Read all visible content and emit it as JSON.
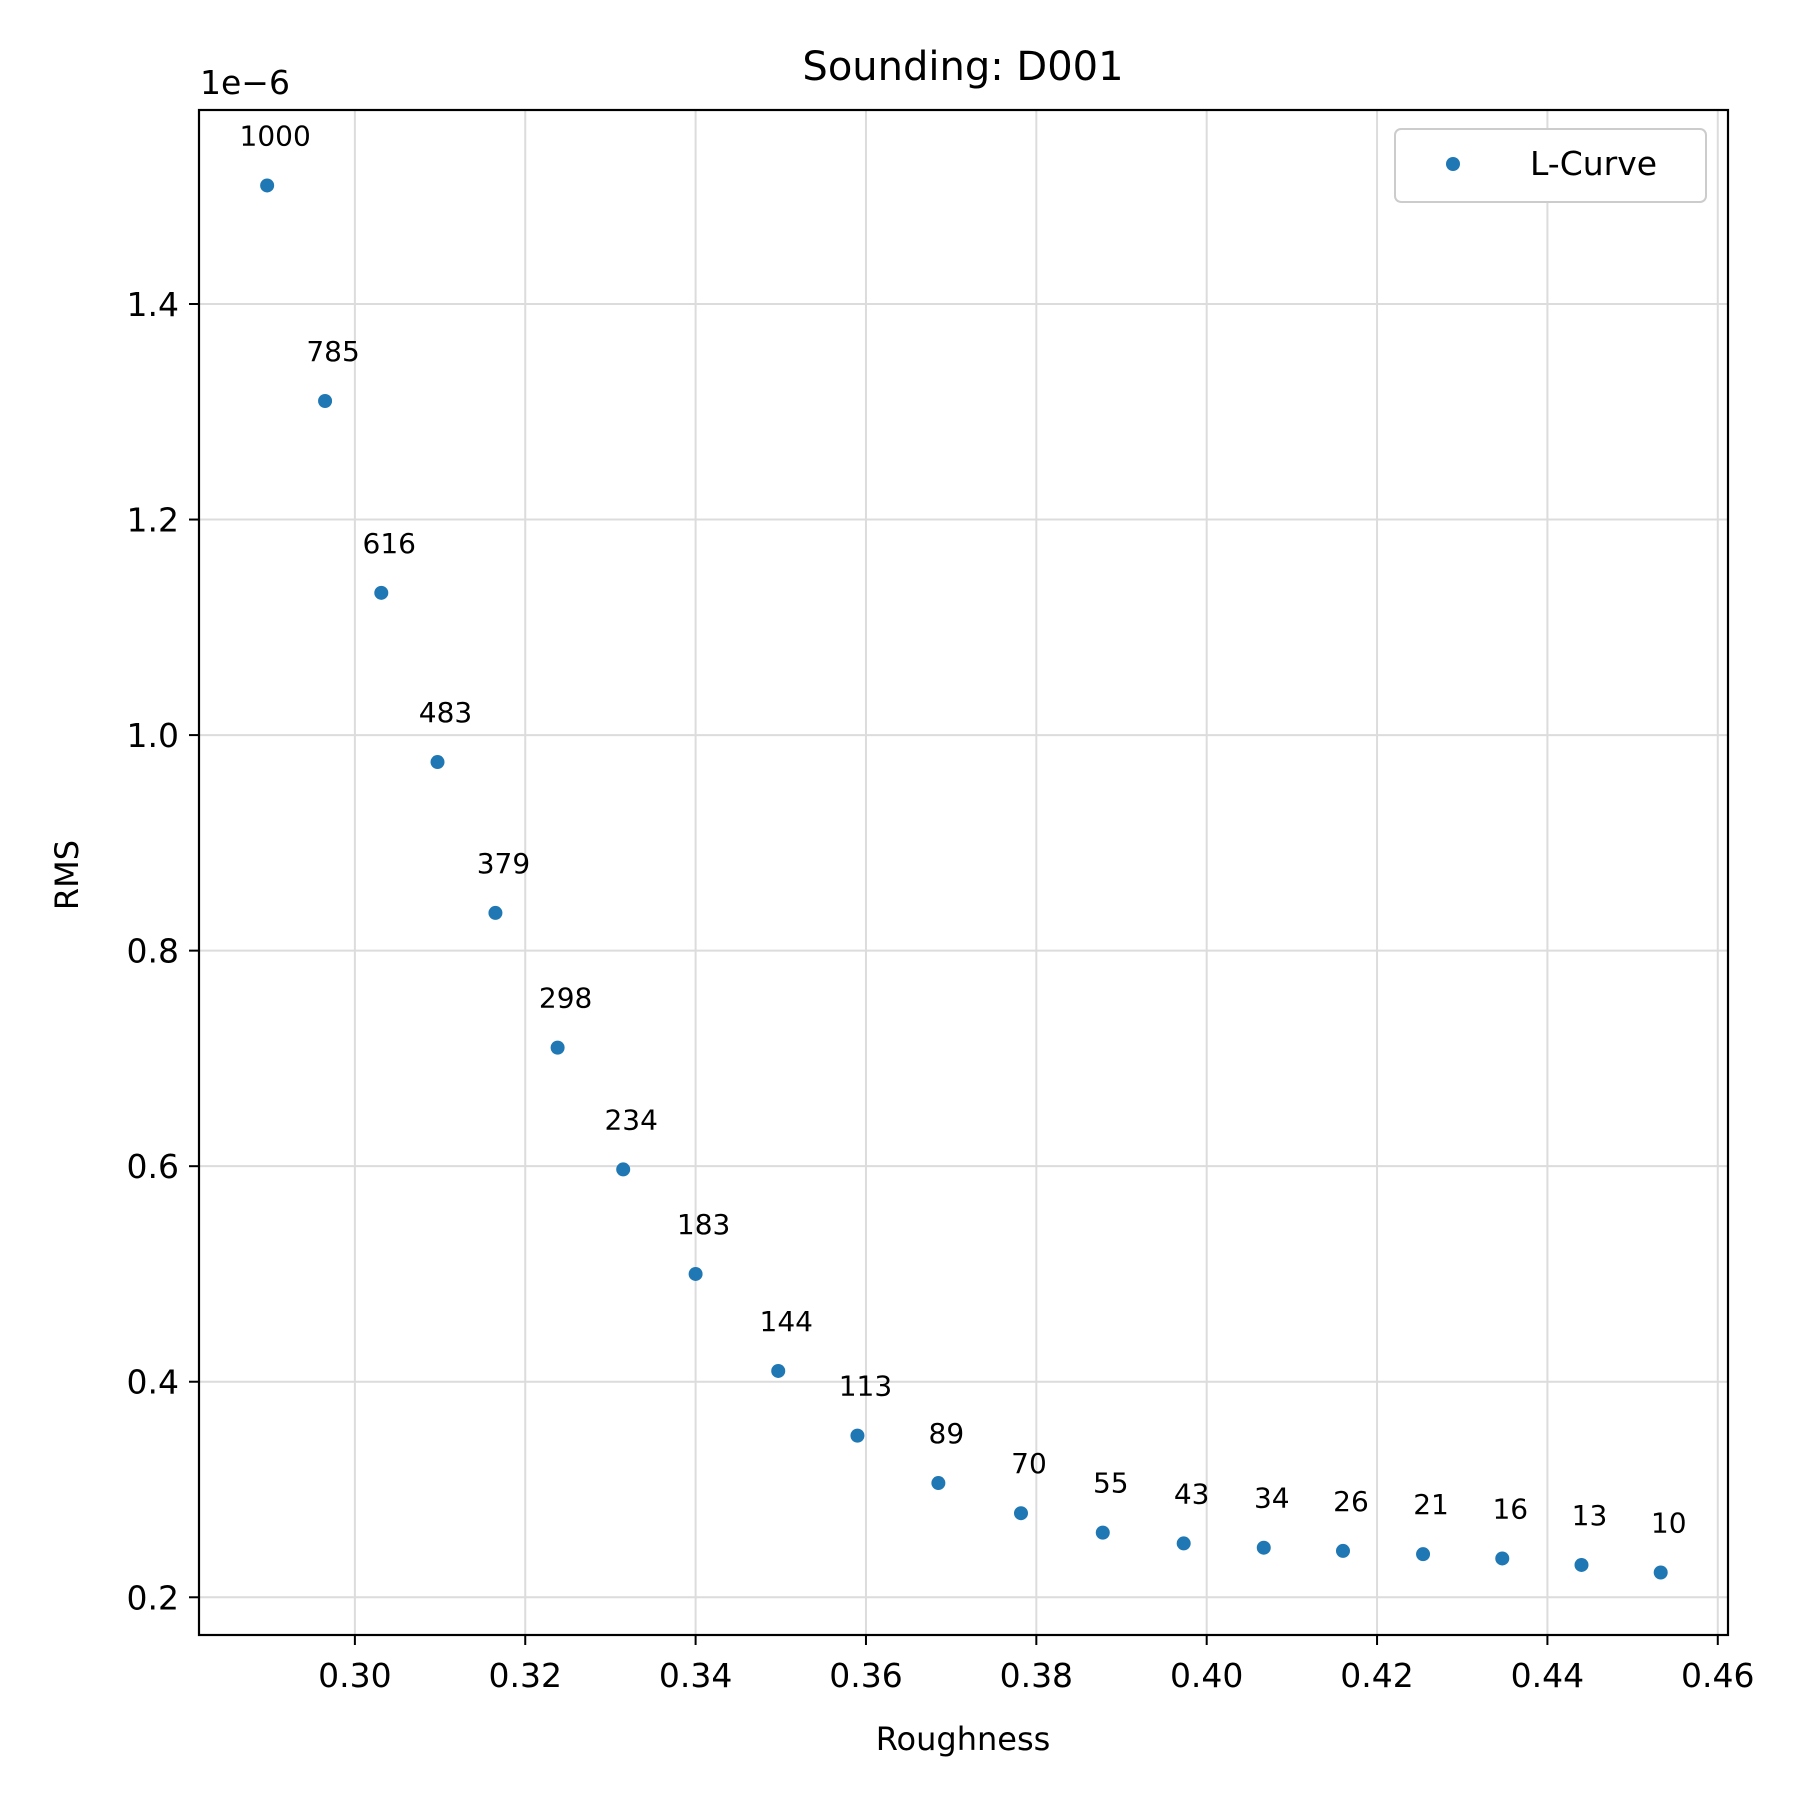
{
  "chart_data": {
    "type": "scatter",
    "title": "Sounding: D001",
    "xlabel": "Roughness",
    "ylabel": "RMS",
    "y_offset_text": "1e−6",
    "xlim": [
      0.2817,
      0.4612
    ],
    "ylim": [
      0.165,
      1.58
    ],
    "x_ticks": [
      0.3,
      0.32,
      0.34,
      0.36,
      0.38,
      0.4,
      0.42,
      0.44,
      0.46
    ],
    "x_tick_labels": [
      "0.30",
      "0.32",
      "0.34",
      "0.36",
      "0.38",
      "0.40",
      "0.42",
      "0.44",
      "0.46"
    ],
    "y_ticks": [
      0.2,
      0.4,
      0.6,
      0.8,
      1.0,
      1.2,
      1.4
    ],
    "y_tick_labels": [
      "0.2",
      "0.4",
      "0.6",
      "0.8",
      "1.0",
      "1.2",
      "1.4"
    ],
    "grid": true,
    "legend": {
      "position": "top-right",
      "entries": [
        "L-Curve"
      ]
    },
    "series": [
      {
        "name": "L-Curve",
        "color": "#1f77b4",
        "points": [
          {
            "x": 0.2897,
            "y": 1.51,
            "label": "1000"
          },
          {
            "x": 0.2965,
            "y": 1.31,
            "label": "785"
          },
          {
            "x": 0.3031,
            "y": 1.132,
            "label": "616"
          },
          {
            "x": 0.3097,
            "y": 0.975,
            "label": "483"
          },
          {
            "x": 0.3165,
            "y": 0.835,
            "label": "379"
          },
          {
            "x": 0.3238,
            "y": 0.71,
            "label": "298"
          },
          {
            "x": 0.3315,
            "y": 0.597,
            "label": "234"
          },
          {
            "x": 0.34,
            "y": 0.5,
            "label": "183"
          },
          {
            "x": 0.3497,
            "y": 0.41,
            "label": "144"
          },
          {
            "x": 0.359,
            "y": 0.35,
            "label": "113"
          },
          {
            "x": 0.3685,
            "y": 0.306,
            "label": "89"
          },
          {
            "x": 0.3782,
            "y": 0.278,
            "label": "70"
          },
          {
            "x": 0.3878,
            "y": 0.26,
            "label": "55"
          },
          {
            "x": 0.3973,
            "y": 0.25,
            "label": "43"
          },
          {
            "x": 0.4067,
            "y": 0.246,
            "label": "34"
          },
          {
            "x": 0.416,
            "y": 0.243,
            "label": "26"
          },
          {
            "x": 0.4254,
            "y": 0.24,
            "label": "21"
          },
          {
            "x": 0.4347,
            "y": 0.236,
            "label": "16"
          },
          {
            "x": 0.444,
            "y": 0.23,
            "label": "13"
          },
          {
            "x": 0.4533,
            "y": 0.223,
            "label": "10"
          }
        ]
      }
    ]
  }
}
